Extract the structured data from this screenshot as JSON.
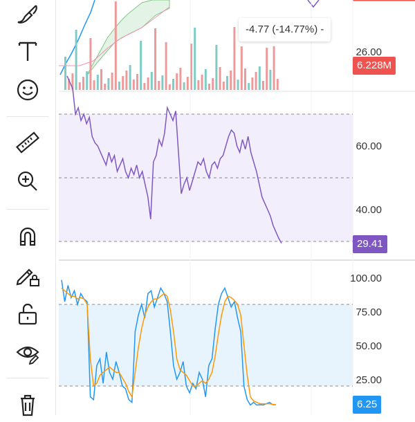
{
  "toolbar": {
    "tools": [
      {
        "name": "brush-icon"
      },
      {
        "name": "text-icon"
      },
      {
        "name": "emoji-icon"
      },
      {
        "name": "ruler-icon"
      },
      {
        "name": "zoom-in-icon"
      },
      {
        "name": "magnet-icon"
      },
      {
        "name": "lock-drawing-icon"
      },
      {
        "name": "unlock-icon"
      },
      {
        "name": "eye-icon"
      },
      {
        "name": "trash-icon"
      }
    ]
  },
  "price_pane": {
    "change_text": "-4.77 (-14.77%) -",
    "axis_label": "26.00",
    "volume_badge": "6.228M",
    "volume_badge_color": "#ef5350"
  },
  "rsi_pane": {
    "axis_labels": [
      "60.00",
      "40.00"
    ],
    "current_value": "29.41",
    "badge_color": "#7e57c2",
    "line_color": "#7e57c2",
    "band_color": "#f3eefc"
  },
  "stoch_pane": {
    "axis_labels": [
      "100.00",
      "75.00",
      "50.00",
      "25.00"
    ],
    "current_value": "6.25",
    "badge_color": "#2196f3",
    "k_color": "#2196f3",
    "d_color": "#ff9800",
    "band_color": "#e8f4fd"
  },
  "chart_data": [
    {
      "type": "line",
      "name": "RSI",
      "x": [
        0,
        1,
        2,
        3,
        4,
        5,
        6,
        7,
        8,
        9,
        10,
        11,
        12,
        13,
        14,
        15,
        16,
        17,
        18,
        19,
        20,
        21,
        22,
        23,
        24,
        25,
        26,
        27,
        28,
        29,
        30,
        31,
        32,
        33,
        34,
        35,
        36,
        37,
        38,
        39,
        40,
        41,
        42,
        43,
        44,
        45,
        46,
        47,
        48,
        49,
        50,
        51,
        52,
        53,
        54,
        55,
        56,
        57,
        58,
        59,
        60,
        61,
        62,
        63,
        64,
        65,
        66,
        67,
        68,
        69,
        70,
        71,
        72,
        73,
        74,
        75,
        76,
        77,
        78,
        79,
        80,
        81,
        82,
        83,
        84,
        85,
        86,
        87,
        88,
        89,
        90,
        91,
        92,
        93,
        94,
        95,
        96,
        97,
        98,
        99
      ],
      "values": [
        82,
        80,
        78,
        70,
        72,
        68,
        70,
        67,
        69,
        63,
        61,
        60,
        58,
        56,
        54,
        58,
        55,
        57,
        52,
        54,
        56,
        52,
        50,
        53,
        51,
        54,
        50,
        52,
        48,
        44,
        37,
        55,
        57,
        62,
        60,
        64,
        72,
        70,
        68,
        71,
        58,
        45,
        48,
        50,
        46,
        49,
        52,
        55,
        54,
        56,
        52,
        50,
        54,
        55,
        53,
        56,
        57,
        60,
        63,
        65,
        64,
        60,
        58,
        62,
        59,
        63,
        58,
        55,
        52,
        48,
        44,
        42,
        40,
        38,
        35,
        33,
        31,
        29.41,
        29.5,
        29.41,
        29.41,
        29.41,
        29.41,
        29.41,
        29.41,
        29.41,
        29.41,
        29.41,
        29.41,
        29.41,
        29.41,
        29.41,
        29.41,
        29.41,
        29.41,
        29.41,
        29.41,
        29.41,
        29.41,
        29.41
      ],
      "levels": [
        70,
        50,
        30
      ]
    },
    {
      "type": "line",
      "name": "Stoch",
      "series": [
        {
          "name": "%K",
          "values": [
            98,
            82,
            94,
            85,
            90,
            80,
            88,
            84,
            82,
            12,
            10,
            35,
            40,
            22,
            45,
            30,
            25,
            38,
            30,
            20,
            18,
            10,
            8,
            60,
            72,
            80,
            70,
            88,
            90,
            78,
            85,
            92,
            88,
            82,
            60,
            35,
            25,
            30,
            38,
            20,
            15,
            22,
            18,
            30,
            25,
            12,
            35,
            40,
            62,
            80,
            88,
            92,
            85,
            78,
            82,
            70,
            60,
            20,
            10,
            6,
            8,
            6,
            6.25,
            6,
            7,
            8,
            6.25,
            6.25
          ]
        },
        {
          "name": "%D",
          "values": [
            92,
            90,
            88,
            86,
            86,
            84,
            85,
            84,
            80,
            40,
            20,
            22,
            28,
            30,
            32,
            34,
            32,
            30,
            30,
            26,
            22,
            16,
            12,
            30,
            48,
            62,
            72,
            78,
            82,
            84,
            84,
            86,
            88,
            86,
            76,
            60,
            40,
            32,
            30,
            28,
            24,
            20,
            20,
            22,
            24,
            22,
            25,
            30,
            42,
            58,
            72,
            82,
            86,
            85,
            83,
            80,
            72,
            50,
            28,
            12,
            9,
            8,
            7,
            7,
            7,
            7,
            6.5,
            6.25
          ]
        }
      ],
      "levels": [
        80,
        20
      ],
      "ylim": [
        0,
        100
      ]
    }
  ]
}
